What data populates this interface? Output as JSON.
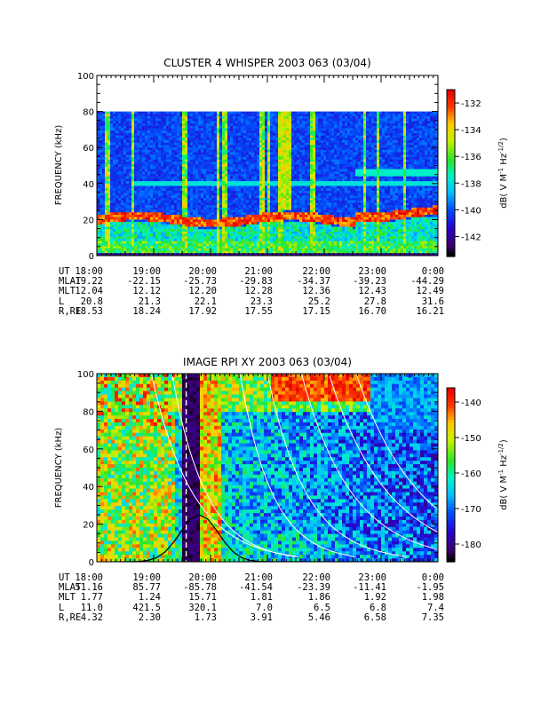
{
  "chart_data": [
    {
      "type": "heatmap",
      "title": "CLUSTER 4 WHISPER 2003 063 (03/04)",
      "ylabel": "FREQUENCY (kHz)",
      "ylim": [
        0,
        100
      ],
      "yticks": [
        "0",
        "20",
        "40",
        "60",
        "80",
        "100"
      ],
      "data_top_khz": 80,
      "colorbar": {
        "label_parts": [
          "dB( V M",
          "-1",
          " Hz",
          "-1/2",
          ")"
        ],
        "range": [
          -143.5,
          -131
        ],
        "ticks": [
          "-132",
          "-134",
          "-136",
          "-138",
          "-140",
          "-142"
        ]
      },
      "ephemeris": {
        "labels": [
          "UT",
          "MLAT",
          "MLT",
          "L",
          "R,RE"
        ],
        "rows": [
          [
            "18:00",
            "19:00",
            "20:00",
            "21:00",
            "22:00",
            "23:00",
            "0:00"
          ],
          [
            "-19.22",
            "-22.15",
            "-25.73",
            "-29.83",
            "-34.37",
            "-39.23",
            "-44.29"
          ],
          [
            "12.04",
            "12.12",
            "12.20",
            "12.28",
            "12.36",
            "12.43",
            "12.49"
          ],
          [
            "20.8",
            "21.3",
            "22.1",
            "23.3",
            "25.2",
            "27.8",
            "31.6"
          ],
          [
            "18.53",
            "18.24",
            "17.92",
            "17.55",
            "17.15",
            "16.70",
            "16.21"
          ]
        ]
      }
    },
    {
      "type": "heatmap",
      "title": "IMAGE RPI XY 2003 063 (03/04)",
      "ylabel": "FREQUENCY (kHz)",
      "ylim": [
        0,
        100
      ],
      "yticks": [
        "0",
        "20",
        "40",
        "60",
        "80",
        "100"
      ],
      "colorbar": {
        "label_parts": [
          "dB( V M",
          "-1",
          " Hz",
          "-1/2",
          ")"
        ],
        "range": [
          -185,
          -136
        ],
        "ticks": [
          "-140",
          "-150",
          "-160",
          "-170",
          "-180"
        ]
      },
      "ephemeris": {
        "labels": [
          "UT",
          "MLAT",
          "MLT",
          "L",
          "R,RE"
        ],
        "rows": [
          [
            "18:00",
            "19:00",
            "20:00",
            "21:00",
            "22:00",
            "23:00",
            "0:00"
          ],
          [
            "51.16",
            "85.77",
            "-85.78",
            "-41.54",
            "-23.39",
            "-11.41",
            "-1.95"
          ],
          [
            "1.77",
            "1.24",
            "15.71",
            "1.81",
            "1.86",
            "1.92",
            "1.98"
          ],
          [
            "11.0",
            "421.5",
            "320.1",
            "7.0",
            "6.5",
            "6.8",
            "7.4"
          ],
          [
            "4.32",
            "2.30",
            "1.73",
            "3.91",
            "5.46",
            "6.58",
            "7.35"
          ]
        ]
      }
    }
  ]
}
